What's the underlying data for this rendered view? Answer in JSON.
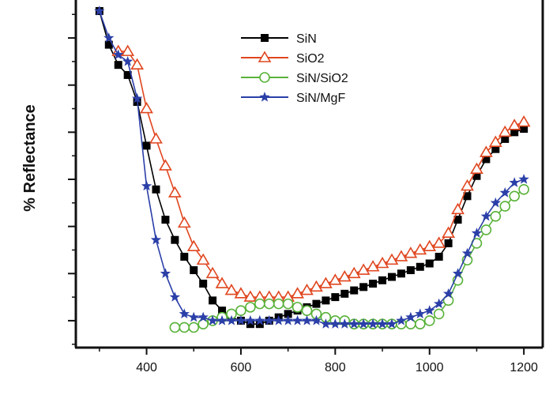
{
  "chart_data": {
    "type": "line",
    "title": "",
    "xlabel": "",
    "ylabel": "% Reflectance",
    "xlim": [
      250,
      1240
    ],
    "ylim": [
      0,
      100
    ],
    "xticks": [
      400,
      600,
      800,
      1000,
      1200
    ],
    "yticks": [
      10,
      25,
      40,
      55,
      70,
      85
    ],
    "grid": false,
    "legend_position": "top-center",
    "series": [
      {
        "name": "SiN",
        "color": "#000000",
        "marker": "square",
        "x": [
          300,
          320,
          340,
          360,
          380,
          400,
          420,
          440,
          460,
          480,
          500,
          520,
          540,
          560,
          580,
          600,
          620,
          640,
          660,
          680,
          700,
          720,
          740,
          760,
          780,
          800,
          820,
          840,
          860,
          880,
          900,
          920,
          940,
          960,
          980,
          1000,
          1020,
          1040,
          1060,
          1080,
          1100,
          1120,
          1140,
          1160,
          1180,
          1200
        ],
        "y": [
          100,
          90,
          84,
          81,
          73,
          60,
          47,
          38,
          32,
          27,
          23,
          19,
          14,
          11,
          9,
          8,
          7,
          7,
          8,
          9,
          10,
          11,
          12,
          13,
          14,
          15,
          16,
          17,
          18,
          19,
          20,
          21,
          22,
          23,
          24,
          25,
          27,
          31,
          38,
          45,
          51,
          56,
          59,
          62,
          64,
          65
        ]
      },
      {
        "name": "SiO2",
        "color": "#e0461f",
        "marker": "triangle",
        "x": [
          340,
          360,
          380,
          400,
          420,
          440,
          460,
          480,
          500,
          520,
          540,
          560,
          580,
          600,
          620,
          640,
          660,
          680,
          700,
          720,
          740,
          760,
          780,
          800,
          820,
          840,
          860,
          880,
          900,
          920,
          940,
          960,
          980,
          1000,
          1020,
          1040,
          1060,
          1080,
          1100,
          1120,
          1140,
          1160,
          1180,
          1200
        ],
        "y": [
          88,
          88,
          84,
          71,
          62,
          54,
          46,
          37,
          30,
          26,
          22,
          19,
          17,
          16,
          15,
          15,
          15,
          15,
          15,
          16,
          17,
          18,
          19,
          20,
          21,
          22,
          23,
          24,
          25,
          26,
          27,
          28,
          29,
          30,
          31,
          34,
          41,
          48,
          53,
          58,
          61,
          64,
          66,
          67
        ]
      },
      {
        "name": "SiN/SiO2",
        "color": "#59b23a",
        "marker": "circle",
        "x": [
          460,
          480,
          500,
          520,
          540,
          560,
          580,
          600,
          620,
          640,
          660,
          680,
          700,
          720,
          740,
          760,
          780,
          800,
          820,
          840,
          860,
          880,
          900,
          920,
          940,
          960,
          980,
          1000,
          1020,
          1040,
          1060,
          1080,
          1100,
          1120,
          1140,
          1160,
          1180,
          1200
        ],
        "y": [
          6,
          6,
          6,
          7,
          8,
          9,
          10,
          11,
          12,
          13,
          13,
          13,
          13,
          12,
          11,
          10,
          9,
          8,
          8,
          7,
          7,
          7,
          7,
          7,
          7,
          7,
          7,
          8,
          10,
          14,
          20,
          26,
          31,
          35,
          39,
          42,
          45,
          47
        ]
      },
      {
        "name": "SiN/MgF",
        "color": "#2b3fa8",
        "marker": "star",
        "x": [
          300,
          320,
          340,
          360,
          380,
          400,
          420,
          440,
          460,
          480,
          500,
          520,
          540,
          560,
          580,
          600,
          620,
          640,
          660,
          680,
          700,
          720,
          740,
          760,
          780,
          800,
          820,
          840,
          860,
          880,
          900,
          920,
          940,
          960,
          980,
          1000,
          1020,
          1040,
          1060,
          1080,
          1100,
          1120,
          1140,
          1160,
          1180,
          1200
        ],
        "y": [
          100,
          92,
          87,
          85,
          74,
          48,
          32,
          22,
          15,
          10,
          9,
          9,
          8,
          8,
          8,
          8,
          8,
          8,
          8,
          8,
          8,
          8,
          8,
          8,
          7,
          7,
          7,
          7,
          7,
          7,
          7,
          7,
          8,
          9,
          10,
          11,
          13,
          16,
          22,
          28,
          34,
          39,
          43,
          46,
          49,
          50
        ]
      }
    ]
  }
}
